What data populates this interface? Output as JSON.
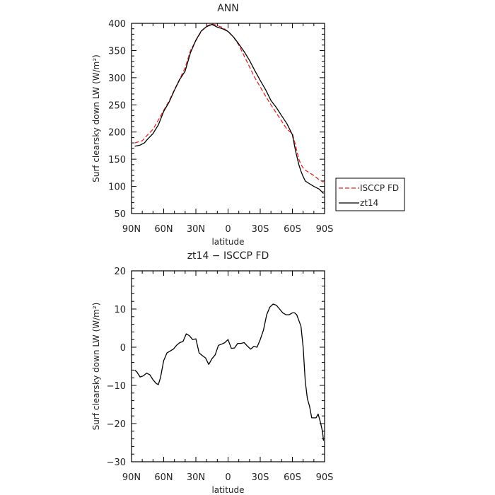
{
  "chart_data": [
    {
      "type": "line",
      "title": "ANN",
      "xlabel": "latitude",
      "ylabel": "Surf clearsky down LW (W/m²)",
      "xlim": [
        90,
        -90
      ],
      "ylim": [
        50,
        400
      ],
      "x_ticks": [
        90,
        60,
        30,
        0,
        -30,
        -60,
        -90
      ],
      "x_tick_labels": [
        "90N",
        "60N",
        "30N",
        "0",
        "30S",
        "60S",
        "90S"
      ],
      "y_ticks": [
        50,
        100,
        150,
        200,
        250,
        300,
        350,
        400
      ],
      "y_tick_labels": [
        "50",
        "100",
        "150",
        "200",
        "250",
        "300",
        "350",
        "400"
      ],
      "grid": false,
      "legend": "outside-right",
      "series": [
        {
          "name": "ISCCP FD",
          "color": "#e8231e",
          "dash": "dashed",
          "x": [
            87,
            80,
            75,
            70,
            65,
            60,
            55,
            50,
            45,
            40,
            35,
            30,
            25,
            20,
            15,
            10,
            5,
            0,
            -5,
            -10,
            -15,
            -20,
            -25,
            -30,
            -35,
            -40,
            -45,
            -50,
            -55,
            -60,
            -63,
            -66,
            -68,
            -70,
            -72,
            -75,
            -80,
            -85,
            -89
          ],
          "y": [
            180,
            184,
            195,
            205,
            222,
            240,
            257,
            278,
            298,
            318,
            350,
            368,
            385,
            395,
            399,
            396,
            392,
            385,
            375,
            360,
            340,
            320,
            300,
            283,
            266,
            250,
            235,
            220,
            205,
            197,
            175,
            150,
            140,
            134,
            130,
            126,
            120,
            112,
            108
          ]
        },
        {
          "name": "zt14",
          "color": "#000000",
          "dash": "solid",
          "x": [
            87,
            82,
            78,
            75,
            70,
            65,
            60,
            55,
            50,
            45,
            40,
            35,
            30,
            25,
            20,
            15,
            10,
            5,
            0,
            -5,
            -10,
            -15,
            -20,
            -25,
            -30,
            -35,
            -40,
            -45,
            -50,
            -55,
            -60,
            -63,
            -66,
            -68,
            -70,
            -72,
            -75,
            -80,
            -85,
            -89
          ],
          "y": [
            174,
            176,
            180,
            187,
            197,
            213,
            238,
            255,
            277,
            297,
            312,
            346,
            369,
            386,
            394,
            398,
            393,
            390,
            385,
            375,
            362,
            348,
            332,
            313,
            295,
            278,
            258,
            245,
            230,
            215,
            195,
            165,
            140,
            128,
            118,
            110,
            106,
            100,
            95,
            87
          ]
        }
      ]
    },
    {
      "type": "line",
      "title": "zt14 − ISCCP FD",
      "xlabel": "latitude",
      "ylabel": "Surf clearsky down LW (W/m²)",
      "xlim": [
        90,
        -90
      ],
      "ylim": [
        -30,
        20
      ],
      "x_ticks": [
        90,
        60,
        30,
        0,
        -30,
        -60,
        -90
      ],
      "x_tick_labels": [
        "90N",
        "60N",
        "30N",
        "0",
        "30S",
        "60S",
        "90S"
      ],
      "y_ticks": [
        -30,
        -20,
        -10,
        0,
        10,
        20
      ],
      "y_tick_labels": [
        "−30",
        "−20",
        "−10",
        "0",
        "10",
        "20"
      ],
      "grid": false,
      "series": [
        {
          "color": "#000000",
          "dash": "solid",
          "x": [
            87,
            85,
            82,
            79,
            76,
            73,
            70,
            67,
            65,
            63,
            60,
            57,
            54,
            51,
            48,
            45,
            42,
            39,
            36,
            33,
            30,
            27,
            24,
            21,
            18,
            15,
            12,
            9,
            6,
            3,
            0,
            -3,
            -6,
            -9,
            -12,
            -15,
            -18,
            -21,
            -24,
            -27,
            -30,
            -33,
            -36,
            -39,
            -42,
            -45,
            -48,
            -51,
            -54,
            -57,
            -60,
            -62,
            -64,
            -66,
            -68,
            -70,
            -72,
            -74,
            -76,
            -78,
            -80,
            -82,
            -84,
            -86,
            -88,
            -89
          ],
          "y": [
            -6,
            -6.5,
            -7.8,
            -7.5,
            -6.8,
            -7.2,
            -8.5,
            -9.5,
            -9.8,
            -8,
            -3.5,
            -1.5,
            -1,
            -0.5,
            0.5,
            1.2,
            1.5,
            3.5,
            3,
            2,
            2.2,
            -1.5,
            -2.2,
            -2.8,
            -4.5,
            -3,
            -2,
            0.5,
            0.8,
            1.2,
            2,
            -0.3,
            -0.2,
            1,
            1,
            1.2,
            0.3,
            -0.5,
            0.2,
            0,
            2,
            4.5,
            8.5,
            10.5,
            11.3,
            11,
            10,
            9,
            8.5,
            8.5,
            9,
            9,
            8.5,
            7,
            5.5,
            0,
            -9,
            -13.5,
            -15.5,
            -18.5,
            -18.5,
            -18.5,
            -17.5,
            -19.5,
            -22,
            -24.5
          ]
        }
      ]
    }
  ]
}
